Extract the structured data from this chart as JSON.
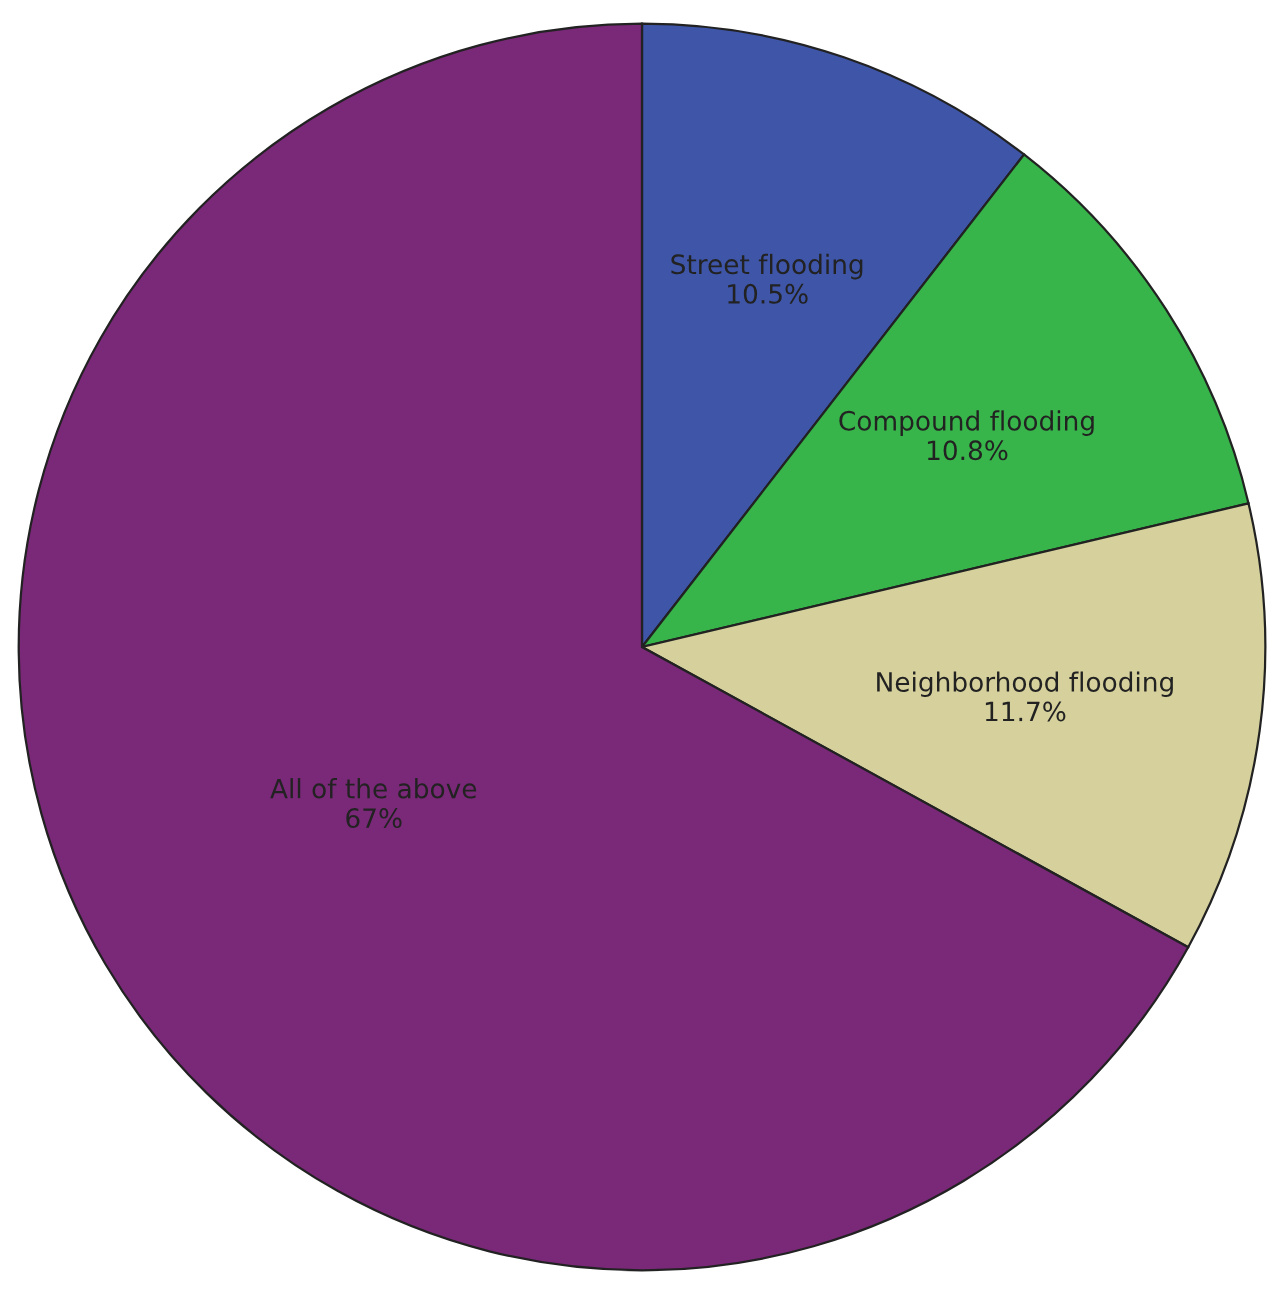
{
  "chart_data": {
    "type": "pie",
    "categories": [
      "Street flooding",
      "Compound flooding",
      "Neighborhood flooding",
      "All of the above"
    ],
    "values": [
      10.5,
      10.8,
      11.7,
      67
    ],
    "value_labels": [
      "10.5%",
      "10.8%",
      "11.7%",
      "67%"
    ],
    "colors": [
      "#3e55a8",
      "#38b54a",
      "#d5d09c",
      "#7a2878"
    ],
    "legend": false
  }
}
